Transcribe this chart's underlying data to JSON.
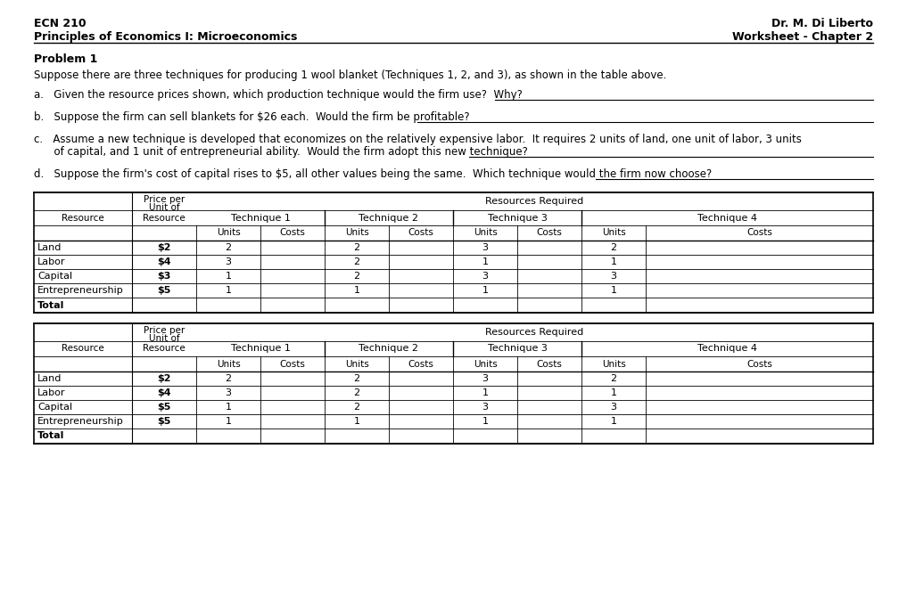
{
  "header_left_line1": "ECN 210",
  "header_left_line2": "Principles of Economics I: Microeconomics",
  "header_right_line1": "Dr. M. Di Liberto",
  "header_right_line2": "Worksheet - Chapter 2",
  "problem_label": "Problem 1",
  "problem_text": "Suppose there are three techniques for producing 1 wool blanket (Techniques 1, 2, and 3), as shown in the table above.",
  "q_a": "a.   Given the resource prices shown, which production technique would the firm use?  Why?",
  "q_b": "b.   Suppose the firm can sell blankets for $26 each.  Would the firm be profitable?",
  "q_c1": "c.   Assume a new technique is developed that economizes on the relatively expensive labor.  It requires 2 units of land, one unit of labor, 3 units",
  "q_c2": "      of capital, and 1 unit of entrepreneurial ability.  Would the firm adopt this new technique?",
  "q_d": "d.   Suppose the firm's cost of capital rises to $5, all other values being the same.  Which technique would the firm now choose?",
  "table1": {
    "resources": [
      "Land",
      "Labor",
      "Capital",
      "Entrepreneurship",
      "Total"
    ],
    "prices": [
      "$2",
      "$4",
      "$3",
      "$5",
      ""
    ],
    "t1_units": [
      "2",
      "3",
      "1",
      "1",
      ""
    ],
    "t2_units": [
      "2",
      "2",
      "2",
      "1",
      ""
    ],
    "t3_units": [
      "3",
      "1",
      "3",
      "1",
      ""
    ],
    "t4_units": [
      "2",
      "1",
      "3",
      "1",
      ""
    ]
  },
  "table2": {
    "resources": [
      "Land",
      "Labor",
      "Capital",
      "Entrepreneurship",
      "Total"
    ],
    "prices": [
      "$2",
      "$4",
      "$5",
      "$5",
      ""
    ],
    "t1_units": [
      "2",
      "3",
      "1",
      "1",
      ""
    ],
    "t2_units": [
      "2",
      "2",
      "2",
      "1",
      ""
    ],
    "t3_units": [
      "3",
      "1",
      "3",
      "1",
      ""
    ],
    "t4_units": [
      "2",
      "1",
      "3",
      "1",
      ""
    ]
  },
  "bg_color": "#ffffff",
  "text_color": "#000000",
  "line_color": "#000000"
}
